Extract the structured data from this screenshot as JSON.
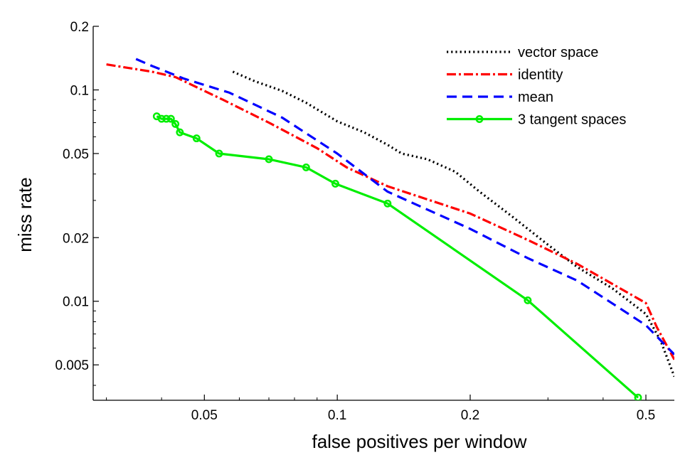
{
  "chart_data": {
    "type": "line",
    "title": "",
    "xlabel": "false positives per window",
    "ylabel": "miss rate",
    "xscale": "log",
    "yscale": "log",
    "xlim": [
      0.028,
      0.58
    ],
    "ylim": [
      0.0034,
      0.2
    ],
    "xticks": [
      {
        "value": 0.05,
        "label": "0.05"
      },
      {
        "value": 0.1,
        "label": "0.1"
      },
      {
        "value": 0.2,
        "label": "0.2"
      },
      {
        "value": 0.5,
        "label": "0.5"
      }
    ],
    "yticks": [
      {
        "value": 0.2,
        "label": "0.2"
      },
      {
        "value": 0.1,
        "label": "0.1"
      },
      {
        "value": 0.05,
        "label": "0.05"
      },
      {
        "value": 0.02,
        "label": "0.02"
      },
      {
        "value": 0.01,
        "label": "0.01"
      },
      {
        "value": 0.005,
        "label": "0.005"
      }
    ],
    "legend_position": "top-right",
    "grid": false,
    "series": [
      {
        "name": "vector space",
        "color": "#000000",
        "style": "dotted",
        "markers": false,
        "x": [
          0.058,
          0.065,
          0.075,
          0.085,
          0.1,
          0.115,
          0.13,
          0.14,
          0.16,
          0.185,
          0.21,
          0.25,
          0.3,
          0.35,
          0.42,
          0.5,
          0.54,
          0.58
        ],
        "y": [
          0.122,
          0.11,
          0.099,
          0.087,
          0.071,
          0.063,
          0.055,
          0.05,
          0.047,
          0.041,
          0.033,
          0.025,
          0.0185,
          0.0145,
          0.0115,
          0.0087,
          0.0065,
          0.0044
        ]
      },
      {
        "name": "identity",
        "color": "#ff0000",
        "style": "dashdot",
        "markers": false,
        "x": [
          0.03,
          0.038,
          0.043,
          0.055,
          0.07,
          0.09,
          0.105,
          0.13,
          0.2,
          0.27,
          0.35,
          0.5,
          0.53,
          0.58
        ],
        "y": [
          0.132,
          0.122,
          0.115,
          0.09,
          0.07,
          0.053,
          0.043,
          0.035,
          0.026,
          0.0195,
          0.015,
          0.0098,
          0.0075,
          0.0053
        ]
      },
      {
        "name": "mean",
        "color": "#0000ff",
        "style": "dashed",
        "markers": false,
        "x": [
          0.035,
          0.038,
          0.045,
          0.057,
          0.075,
          0.1,
          0.13,
          0.2,
          0.27,
          0.35,
          0.5,
          0.58
        ],
        "y": [
          0.14,
          0.13,
          0.113,
          0.097,
          0.074,
          0.05,
          0.033,
          0.022,
          0.016,
          0.0125,
          0.0077,
          0.0056
        ]
      },
      {
        "name": "3 tangent spaces",
        "color": "#00ee00",
        "style": "solid",
        "markers": true,
        "x": [
          0.039,
          0.04,
          0.041,
          0.042,
          0.043,
          0.044,
          0.048,
          0.054,
          0.07,
          0.085,
          0.099,
          0.13,
          0.27,
          0.48
        ],
        "y": [
          0.075,
          0.073,
          0.073,
          0.073,
          0.069,
          0.063,
          0.059,
          0.05,
          0.047,
          0.043,
          0.036,
          0.029,
          0.0101,
          0.0035
        ]
      }
    ]
  }
}
